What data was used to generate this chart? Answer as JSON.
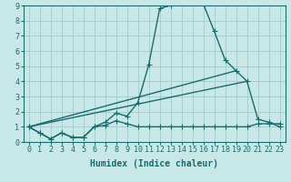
{
  "bg_color": "#c8e8e8",
  "line_color": "#1a6b6b",
  "grid_color": "#a0cccc",
  "xlabel": "Humidex (Indice chaleur)",
  "xlim": [
    -0.5,
    23.5
  ],
  "ylim": [
    0,
    9
  ],
  "xticks": [
    0,
    1,
    2,
    3,
    4,
    5,
    6,
    7,
    8,
    9,
    10,
    11,
    12,
    13,
    14,
    15,
    16,
    17,
    18,
    19,
    20,
    21,
    22,
    23
  ],
  "yticks": [
    0,
    1,
    2,
    3,
    4,
    5,
    6,
    7,
    8,
    9
  ],
  "curve1_x": [
    0,
    1,
    2,
    3,
    4,
    5,
    6,
    7,
    8,
    9,
    10,
    11,
    12,
    13,
    14,
    15,
    16,
    17,
    18,
    19,
    20,
    21,
    22,
    23
  ],
  "curve1_y": [
    1.0,
    0.6,
    0.2,
    0.6,
    0.3,
    0.3,
    1.0,
    1.3,
    1.9,
    1.7,
    2.6,
    5.1,
    8.8,
    9.0,
    9.3,
    9.2,
    9.1,
    7.3,
    5.4,
    4.7,
    4.0,
    1.5,
    1.3,
    1.0
  ],
  "curve2_x": [
    0,
    1,
    2,
    3,
    4,
    5,
    6,
    7,
    8,
    9,
    10,
    11,
    12,
    13,
    14,
    15,
    16,
    17,
    18,
    19,
    20,
    21,
    22,
    23
  ],
  "curve2_y": [
    1.0,
    0.6,
    0.2,
    0.6,
    0.3,
    0.3,
    1.0,
    1.1,
    1.4,
    1.2,
    1.0,
    1.0,
    1.0,
    1.0,
    1.0,
    1.0,
    1.0,
    1.0,
    1.0,
    1.0,
    1.0,
    1.2,
    1.2,
    1.2
  ],
  "line3_x": [
    0,
    19
  ],
  "line3_y": [
    1.0,
    4.7
  ],
  "line4_x": [
    0,
    20
  ],
  "line4_y": [
    1.0,
    4.0
  ],
  "marker_size": 4,
  "linewidth": 1.0,
  "tick_fontsize": 6,
  "xlabel_fontsize": 7
}
